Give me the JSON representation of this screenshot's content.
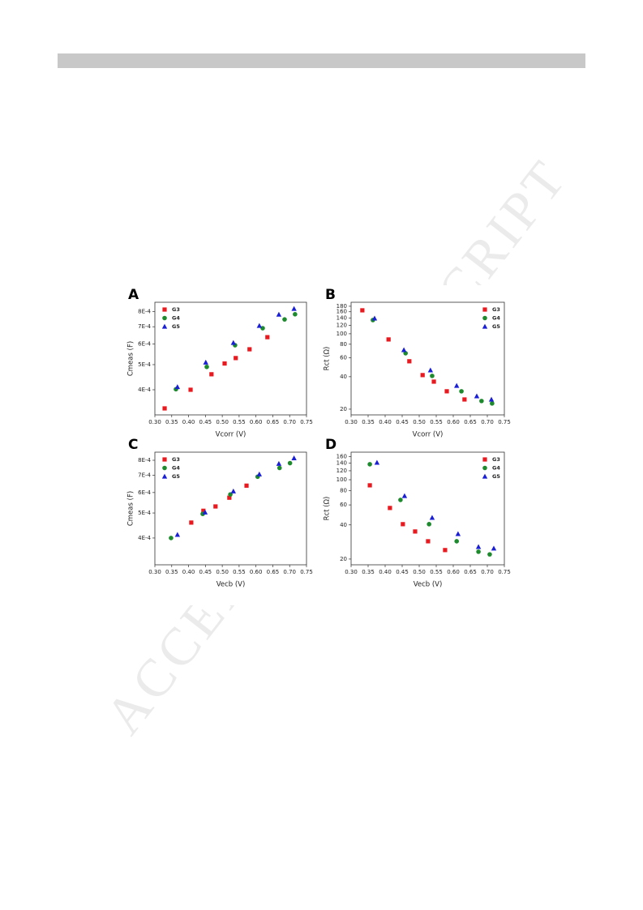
{
  "watermark": "ACCEPTED MANUSCRIPT",
  "chart_data": [
    {
      "type": "scatter",
      "label": "A",
      "xlabel": "Vcorr (V)",
      "ylabel": "Cmeas (F)",
      "log_y": true,
      "legend": "upper left",
      "xlim": [
        0.3,
        0.75
      ],
      "xticks": [
        {
          "value": 0.3,
          "label": "0.30"
        },
        {
          "value": 0.35,
          "label": "0.35"
        },
        {
          "value": 0.4,
          "label": "0.40"
        },
        {
          "value": 0.45,
          "label": "0.45"
        },
        {
          "value": 0.5,
          "label": "0.50"
        },
        {
          "value": 0.55,
          "label": "0.55"
        },
        {
          "value": 0.6,
          "label": "0.60"
        },
        {
          "value": 0.65,
          "label": "0.65"
        },
        {
          "value": 0.7,
          "label": "0.70"
        },
        {
          "value": 0.75,
          "label": "0.75"
        }
      ],
      "ylim": [
        0.00032,
        0.00087
      ],
      "yticks": [
        {
          "value": 0.0004,
          "label": "4E-4"
        },
        {
          "value": 0.0005,
          "label": "5E-4"
        },
        {
          "value": 0.0006,
          "label": "6E-4"
        },
        {
          "value": 0.0007,
          "label": "7E-4"
        },
        {
          "value": 0.0008,
          "label": "8E-4"
        }
      ],
      "series": [
        {
          "name": "G3",
          "color": "#e8191f",
          "marker": "square",
          "x": [
            0.329,
            0.406,
            0.468,
            0.507,
            0.54,
            0.581,
            0.634
          ],
          "values": [
            0.000339,
            0.0004,
            0.000459,
            0.000505,
            0.00053,
            0.000573,
            0.000638
          ]
        },
        {
          "name": "G4",
          "color": "#1e8a2e",
          "marker": "circle",
          "x": [
            0.3625,
            0.454,
            0.538,
            0.62,
            0.685,
            0.716
          ],
          "values": [
            0.000402,
            0.00049,
            0.000594,
            0.000691,
            0.000747,
            0.000782
          ]
        },
        {
          "name": "G5",
          "color": "#1a1fd6",
          "marker": "triangle",
          "x": [
            0.367,
            0.451,
            0.533,
            0.61,
            0.668,
            0.713
          ],
          "values": [
            0.00041,
            0.00051,
            0.000607,
            0.000706,
            0.00078,
            0.000821
          ]
        }
      ]
    },
    {
      "type": "scatter",
      "label": "B",
      "xlabel": "Vcorr (V)",
      "ylabel": "Rct (Ω)",
      "log_y": true,
      "legend": "upper right",
      "xlim": [
        0.3,
        0.75
      ],
      "xticks": [
        {
          "value": 0.3,
          "label": "0.30"
        },
        {
          "value": 0.35,
          "label": "0.35"
        },
        {
          "value": 0.4,
          "label": "0.40"
        },
        {
          "value": 0.45,
          "label": "0.45"
        },
        {
          "value": 0.5,
          "label": "0.50"
        },
        {
          "value": 0.55,
          "label": "0.55"
        },
        {
          "value": 0.6,
          "label": "0.60"
        },
        {
          "value": 0.65,
          "label": "0.65"
        },
        {
          "value": 0.7,
          "label": "0.70"
        },
        {
          "value": 0.75,
          "label": "0.75"
        }
      ],
      "ylim": [
        17.7,
        196
      ],
      "yticks": [
        20,
        40,
        60,
        80,
        100,
        120,
        140,
        160,
        180
      ],
      "series": [
        {
          "name": "G3",
          "color": "#e8191f",
          "marker": "square",
          "x": [
            0.333,
            0.41,
            0.471,
            0.51,
            0.543,
            0.581,
            0.633
          ],
          "values": [
            165,
            88.6,
            55.6,
            41.4,
            36,
            29.3,
            24.6
          ]
        },
        {
          "name": "G4",
          "color": "#1e8a2e",
          "marker": "circle",
          "x": [
            0.364,
            0.46,
            0.538,
            0.624,
            0.683,
            0.714
          ],
          "values": [
            134,
            66,
            40.7,
            29.3,
            23.8,
            22.6
          ]
        },
        {
          "name": "G5",
          "color": "#1a1fd6",
          "marker": "triangle",
          "x": [
            0.369,
            0.455,
            0.533,
            0.61,
            0.669,
            0.712
          ],
          "values": [
            139,
            70.8,
            45.9,
            33,
            26.4,
            24.6
          ]
        }
      ]
    },
    {
      "type": "scatter",
      "label": "C",
      "xlabel": "Vecb (V)",
      "ylabel": "Cmeas (F)",
      "log_y": true,
      "legend": "upper left",
      "xlim": [
        0.3,
        0.75
      ],
      "xticks": [
        {
          "value": 0.3,
          "label": "0.30"
        },
        {
          "value": 0.35,
          "label": "0.35"
        },
        {
          "value": 0.4,
          "label": "0.40"
        },
        {
          "value": 0.45,
          "label": "0.45"
        },
        {
          "value": 0.5,
          "label": "0.50"
        },
        {
          "value": 0.55,
          "label": "0.55"
        },
        {
          "value": 0.6,
          "label": "0.60"
        },
        {
          "value": 0.65,
          "label": "0.65"
        },
        {
          "value": 0.7,
          "label": "0.70"
        },
        {
          "value": 0.75,
          "label": "0.75"
        }
      ],
      "ylim": [
        0.000315,
        0.00086
      ],
      "yticks": [
        {
          "value": 0.0004,
          "label": "4E-4"
        },
        {
          "value": 0.0005,
          "label": "5E-4"
        },
        {
          "value": 0.0006,
          "label": "6E-4"
        },
        {
          "value": 0.0007,
          "label": "7E-4"
        },
        {
          "value": 0.0008,
          "label": "8E-4"
        }
      ],
      "series": [
        {
          "name": "G3",
          "color": "#e8191f",
          "marker": "square",
          "x": [
            0.408,
            0.444,
            0.48,
            0.521,
            0.572
          ],
          "values": [
            0.000459,
            0.00051,
            0.00053,
            0.000573,
            0.000638
          ]
        },
        {
          "name": "G4",
          "color": "#1e8a2e",
          "marker": "circle",
          "x": [
            0.348,
            0.442,
            0.524,
            0.605,
            0.67,
            0.701
          ],
          "values": [
            0.0004,
            0.000496,
            0.00059,
            0.000691,
            0.000747,
            0.00078
          ]
        },
        {
          "name": "G5",
          "color": "#1a1fd6",
          "marker": "triangle",
          "x": [
            0.367,
            0.449,
            0.533,
            0.61,
            0.668,
            0.713
          ],
          "values": [
            0.000412,
            0.000503,
            0.000607,
            0.000706,
            0.000776,
            0.000815
          ]
        }
      ]
    },
    {
      "type": "scatter",
      "label": "D",
      "xlabel": "Vecb (V)",
      "ylabel": "Rct (Ω)",
      "log_y": true,
      "legend": "upper right",
      "xlim": [
        0.3,
        0.75
      ],
      "xticks": [
        {
          "value": 0.3,
          "label": "0.30"
        },
        {
          "value": 0.35,
          "label": "0.35"
        },
        {
          "value": 0.4,
          "label": "0.40"
        },
        {
          "value": 0.45,
          "label": "0.45"
        },
        {
          "value": 0.5,
          "label": "0.50"
        },
        {
          "value": 0.55,
          "label": "0.55"
        },
        {
          "value": 0.6,
          "label": "0.60"
        },
        {
          "value": 0.65,
          "label": "0.65"
        },
        {
          "value": 0.7,
          "label": "0.70"
        },
        {
          "value": 0.75,
          "label": "0.75"
        }
      ],
      "ylim": [
        17.8,
        175
      ],
      "yticks": [
        20,
        40,
        60,
        80,
        100,
        120,
        140,
        160
      ],
      "series": [
        {
          "name": "G3",
          "color": "#e8191f",
          "marker": "square",
          "x": [
            0.355,
            0.414,
            0.452,
            0.488,
            0.526,
            0.576
          ],
          "values": [
            89.3,
            56.4,
            40.6,
            35,
            28.7,
            24
          ]
        },
        {
          "name": "G4",
          "color": "#1e8a2e",
          "marker": "circle",
          "x": [
            0.355,
            0.445,
            0.529,
            0.61,
            0.674,
            0.707
          ],
          "values": [
            137,
            66.4,
            40.6,
            28.7,
            23.2,
            22
          ]
        },
        {
          "name": "G5",
          "color": "#1a1fd6",
          "marker": "triangle",
          "x": [
            0.376,
            0.457,
            0.538,
            0.614,
            0.674,
            0.719
          ],
          "values": [
            141.6,
            72,
            46.3,
            33.3,
            25.6,
            24.8
          ]
        }
      ]
    }
  ]
}
